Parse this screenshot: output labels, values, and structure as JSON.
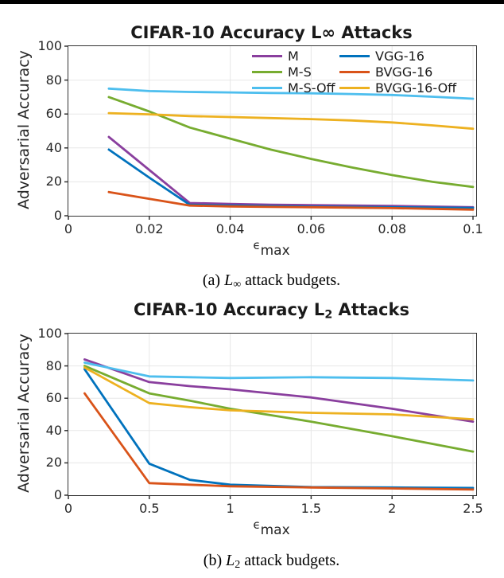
{
  "page": {
    "description": "Two stacked MATLAB-style line charts from a paper figure",
    "top_rule_color": "#000000"
  },
  "colors": {
    "M": "#8A3F9E",
    "M-S": "#77AC30",
    "M-S-Off": "#4DBEEE",
    "VGG-16": "#0072BD",
    "BVGG-16": "#D95319",
    "BVGG-16-Off": "#EDB120",
    "axis": "#333333",
    "grid": "#E7E7E7"
  },
  "chart_data": [
    {
      "type": "line",
      "title": "CIFAR-10 Accuracy L∞ Attacks",
      "title_parts": {
        "prefix": "CIFAR-10 Accuracy ",
        "base": "L",
        "sym": "∞",
        "suffix": " Attacks"
      },
      "ylabel": "Adversarial Accuracy",
      "xlabel": "ε_max",
      "xlabel_parts": {
        "base": "ϵ",
        "sub": "max"
      },
      "caption": "(a) L∞ attack budgets.",
      "caption_parts": {
        "tag": "(a) ",
        "base": "L",
        "sub": "∞",
        "rest": " attack budgets."
      },
      "xlim": [
        0,
        0.1
      ],
      "ylim": [
        0,
        100
      ],
      "grid": true,
      "xticks": [
        {
          "v": 0,
          "label": "0"
        },
        {
          "v": 0.02,
          "label": "0.02"
        },
        {
          "v": 0.04,
          "label": "0.04"
        },
        {
          "v": 0.06,
          "label": "0.06"
        },
        {
          "v": 0.08,
          "label": "0.08"
        },
        {
          "v": 0.1,
          "label": "0.1"
        }
      ],
      "yticks": [
        {
          "v": 0,
          "label": "0"
        },
        {
          "v": 20,
          "label": "20"
        },
        {
          "v": 40,
          "label": "40"
        },
        {
          "v": 60,
          "label": "60"
        },
        {
          "v": 80,
          "label": "80"
        },
        {
          "v": 100,
          "label": "100"
        }
      ],
      "legend": {
        "show": true,
        "position": "top-right",
        "columns": [
          [
            "M",
            "M-S",
            "M-S-Off"
          ],
          [
            "VGG-16",
            "BVGG-16",
            "BVGG-16-Off"
          ]
        ]
      },
      "x": [
        0.01,
        0.02,
        0.03,
        0.04,
        0.05,
        0.06,
        0.07,
        0.08,
        0.09,
        0.1
      ],
      "series": [
        {
          "name": "M",
          "values": [
            46.5,
            27,
            7.5,
            7,
            6.5,
            6.3,
            6,
            5.8,
            5.4,
            5
          ]
        },
        {
          "name": "M-S",
          "values": [
            70,
            61.5,
            52,
            45.5,
            39,
            33.5,
            28.5,
            24,
            20,
            17
          ]
        },
        {
          "name": "M-S-Off",
          "values": [
            75,
            73.5,
            73,
            72.7,
            72.4,
            72.2,
            71.8,
            71.2,
            70.2,
            69
          ]
        },
        {
          "name": "VGG-16",
          "values": [
            39,
            22.5,
            6.5,
            6,
            5.7,
            5.4,
            5.2,
            5,
            4.8,
            4.6
          ]
        },
        {
          "name": "BVGG-16",
          "values": [
            14,
            10,
            6,
            5.5,
            5.2,
            5,
            4.8,
            4.5,
            4.1,
            3.6
          ]
        },
        {
          "name": "BVGG-16-Off",
          "values": [
            60.5,
            59.8,
            58.8,
            58.2,
            57.6,
            57,
            56.2,
            55,
            53.3,
            51.3
          ]
        }
      ]
    },
    {
      "type": "line",
      "title": "CIFAR-10 Accuracy L2 Attacks",
      "title_parts": {
        "prefix": "CIFAR-10 Accuracy ",
        "base": "L",
        "sym": "2",
        "suffix": " Attacks"
      },
      "ylabel": "Adversarial Accuracy",
      "xlabel": "ε_max",
      "xlabel_parts": {
        "base": "ϵ",
        "sub": "max"
      },
      "caption": "(b) L2 attack budgets.",
      "caption_parts": {
        "tag": "(b) ",
        "base": "L",
        "sub": "2",
        "rest": " attack budgets."
      },
      "xlim": [
        0,
        2.5
      ],
      "ylim": [
        0,
        100
      ],
      "grid": true,
      "xticks": [
        {
          "v": 0,
          "label": "0"
        },
        {
          "v": 0.5,
          "label": "0.5"
        },
        {
          "v": 1,
          "label": "1"
        },
        {
          "v": 1.5,
          "label": "1.5"
        },
        {
          "v": 2,
          "label": "2"
        },
        {
          "v": 2.5,
          "label": "2.5"
        }
      ],
      "yticks": [
        {
          "v": 0,
          "label": "0"
        },
        {
          "v": 20,
          "label": "20"
        },
        {
          "v": 40,
          "label": "40"
        },
        {
          "v": 60,
          "label": "60"
        },
        {
          "v": 80,
          "label": "80"
        },
        {
          "v": 100,
          "label": "100"
        }
      ],
      "legend": {
        "show": false
      },
      "x": [
        0.1,
        0.5,
        0.75,
        1,
        1.5,
        2,
        2.5
      ],
      "series": [
        {
          "name": "M",
          "values": [
            84,
            70,
            67.5,
            65.5,
            60.5,
            53.5,
            45.5
          ]
        },
        {
          "name": "M-S",
          "values": [
            80,
            63,
            58.5,
            53.5,
            45.5,
            36.5,
            27
          ]
        },
        {
          "name": "M-S-Off",
          "values": [
            82,
            73.5,
            73,
            72.5,
            73,
            72.5,
            71
          ]
        },
        {
          "name": "VGG-16",
          "values": [
            78,
            19.5,
            9.5,
            6.5,
            5,
            4.8,
            4.5
          ]
        },
        {
          "name": "BVGG-16",
          "values": [
            63,
            7.5,
            6.5,
            5.5,
            4.8,
            4.2,
            3.5
          ]
        },
        {
          "name": "BVGG-16-Off",
          "values": [
            79,
            57,
            54.5,
            52.5,
            51,
            50,
            47
          ]
        }
      ]
    }
  ]
}
